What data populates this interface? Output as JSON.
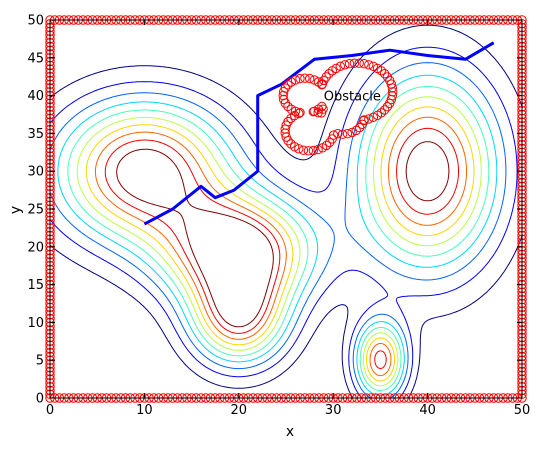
{
  "chart_data": {
    "type": "contour",
    "title": "",
    "xlabel": "x",
    "ylabel": "y",
    "xlim": [
      0,
      50
    ],
    "ylim": [
      0,
      50
    ],
    "xticks": [
      0,
      10,
      20,
      30,
      40,
      50
    ],
    "yticks": [
      0,
      5,
      10,
      15,
      20,
      25,
      30,
      35,
      40,
      45,
      50
    ],
    "grid": false,
    "legend": "none",
    "colormap": "jet",
    "contour_levels": 10,
    "potential_peaks": [
      {
        "x": 10,
        "y": 30,
        "amp": 1.0,
        "sx": 6.5,
        "sy": 6.5
      },
      {
        "x": 20,
        "y": 19.5,
        "amp": 1.0,
        "sx": 5.5,
        "sy": 5.0
      },
      {
        "x": 20,
        "y": 10.5,
        "amp": 0.8,
        "sx": 3.6,
        "sy": 4.5
      },
      {
        "x": 40,
        "y": 30,
        "amp": 1.0,
        "sx": 5.2,
        "sy": 9.0
      },
      {
        "x": 35,
        "y": 5,
        "amp": 0.85,
        "sx": 1.9,
        "sy": 3.6
      }
    ],
    "boundary_markers": {
      "color": "#ff0000",
      "marker": "circle",
      "xmin": 0,
      "xmax": 50,
      "ymin": 0,
      "ymax": 50
    },
    "obstacle": {
      "label": "Obstacle",
      "label_position": [
        29,
        40
      ],
      "color": "#ff0000",
      "lobes": [
        {
          "cx": 32.5,
          "cy": 40.5,
          "r": 3.8
        },
        {
          "cx": 27,
          "cy": 40,
          "r": 2.3
        },
        {
          "cx": 27.5,
          "cy": 35.3,
          "r": 2.6
        },
        {
          "cx": 31,
          "cy": 37.2,
          "r": 2.3
        }
      ]
    },
    "path": {
      "color": "#0000ff",
      "x": [
        10,
        13,
        16,
        17.5,
        19.5,
        22,
        22,
        24.5,
        28,
        32,
        36,
        40,
        44,
        47
      ],
      "y": [
        23,
        25,
        28,
        26.5,
        27.5,
        30,
        40,
        41.5,
        44.8,
        45.3,
        46,
        45.3,
        44.8,
        47
      ]
    }
  }
}
